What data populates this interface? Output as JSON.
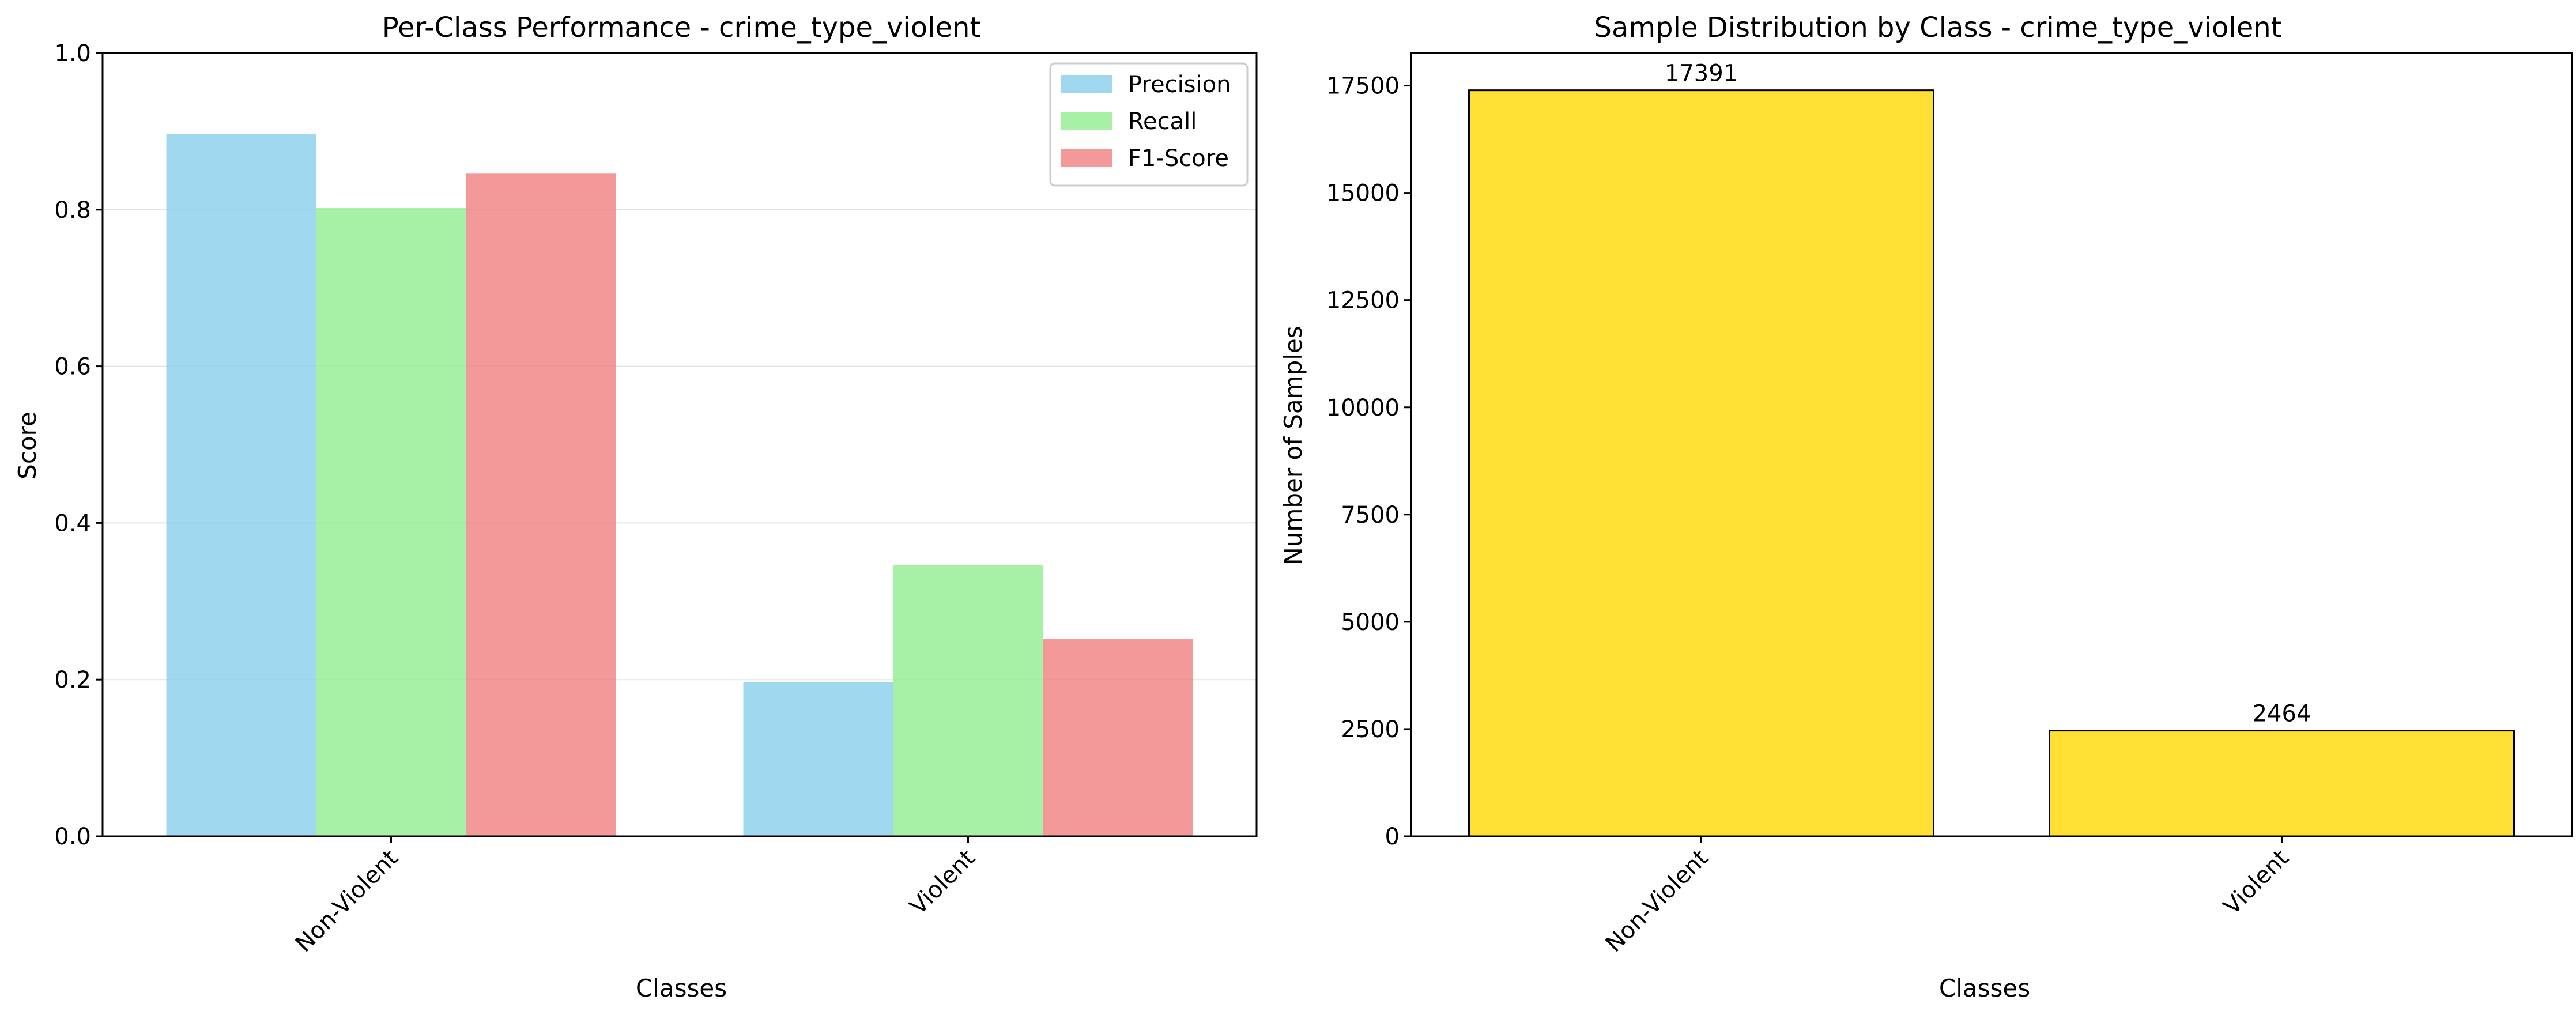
{
  "chart_data": [
    {
      "type": "bar",
      "title": "Per-Class Performance - crime_type_violent",
      "xlabel": "Classes",
      "ylabel": "Score",
      "categories": [
        "Non-Violent",
        "Violent"
      ],
      "ylim": [
        0,
        1.0
      ],
      "yticks": [
        "0.0",
        "0.2",
        "0.4",
        "0.6",
        "0.8",
        "1.0"
      ],
      "grid": "horizontal",
      "legend_position": "top-right",
      "series": [
        {
          "name": "Precision",
          "values": [
            0.897,
            0.197
          ],
          "color": "#87ceeb"
        },
        {
          "name": "Recall",
          "values": [
            0.802,
            0.346
          ],
          "color": "#90ee90"
        },
        {
          "name": "F1-Score",
          "values": [
            0.846,
            0.252
          ],
          "color": "#f08080"
        }
      ]
    },
    {
      "type": "bar",
      "title": "Sample Distribution by Class - crime_type_violent",
      "xlabel": "Classes",
      "ylabel": "Number of Samples",
      "categories": [
        "Non-Violent",
        "Violent"
      ],
      "values": [
        17391,
        2464
      ],
      "data_labels": [
        "17391",
        "2464"
      ],
      "ylim": [
        0,
        18260
      ],
      "yticks": [
        "0",
        "2500",
        "5000",
        "7500",
        "10000",
        "12500",
        "15000",
        "17500"
      ],
      "grid": "none",
      "color": "#ffd700"
    }
  ]
}
